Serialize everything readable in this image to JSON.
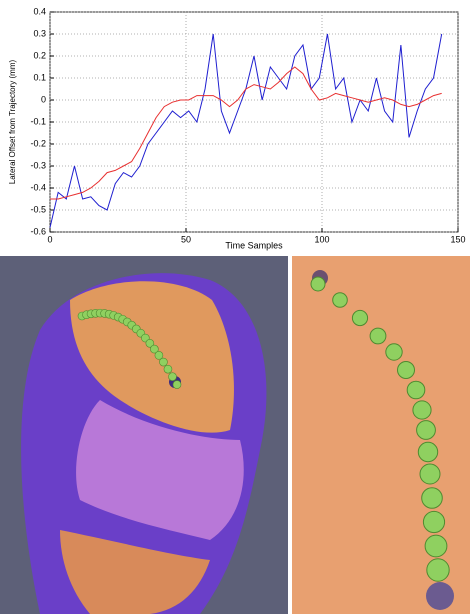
{
  "chart_data": {
    "type": "line",
    "x_label": "Time Samples",
    "y_label": "Lateral Offset from Trajectory (mm)",
    "x": [
      0,
      3,
      6,
      9,
      12,
      15,
      18,
      21,
      24,
      27,
      30,
      33,
      36,
      39,
      42,
      45,
      48,
      51,
      54,
      57,
      60,
      63,
      66,
      69,
      72,
      75,
      78,
      81,
      84,
      87,
      90,
      93,
      96,
      99,
      102,
      105,
      108,
      111,
      114,
      117,
      120,
      123,
      126,
      129,
      132,
      135,
      138,
      141,
      144
    ],
    "series": [
      {
        "color": "#1f1fd0",
        "values": [
          -0.58,
          -0.42,
          -0.45,
          -0.3,
          -0.45,
          -0.44,
          -0.48,
          -0.5,
          -0.38,
          -0.33,
          -0.35,
          -0.3,
          -0.2,
          -0.15,
          -0.1,
          -0.05,
          -0.08,
          -0.05,
          -0.1,
          0.05,
          0.3,
          -0.05,
          -0.15,
          -0.05,
          0.05,
          0.2,
          0.0,
          0.15,
          0.1,
          0.05,
          0.2,
          0.25,
          0.05,
          0.1,
          0.3,
          0.05,
          0.1,
          -0.1,
          0.0,
          -0.05,
          0.1,
          -0.05,
          -0.1,
          0.25,
          -0.17,
          -0.05,
          0.05,
          0.1,
          0.3
        ]
      },
      {
        "color": "#e83030",
        "values": [
          -0.45,
          -0.45,
          -0.44,
          -0.43,
          -0.42,
          -0.4,
          -0.37,
          -0.33,
          -0.32,
          -0.3,
          -0.28,
          -0.22,
          -0.15,
          -0.08,
          -0.03,
          -0.01,
          0.0,
          0.0,
          0.02,
          0.02,
          0.02,
          0.0,
          -0.03,
          0.0,
          0.05,
          0.07,
          0.06,
          0.05,
          0.08,
          0.12,
          0.15,
          0.12,
          0.05,
          0.0,
          0.01,
          0.03,
          0.02,
          0.01,
          0.0,
          -0.01,
          0.0,
          0.01,
          0.0,
          -0.02,
          -0.03,
          -0.02,
          0.0,
          0.02,
          0.03
        ]
      }
    ],
    "xlim": [
      0,
      150
    ],
    "xticks": [
      0,
      50,
      100,
      150
    ],
    "ylim": [
      -0.6,
      0.4
    ],
    "yticks": [
      -0.6,
      -0.5,
      -0.4,
      -0.3,
      -0.2,
      -0.1,
      0,
      0.1,
      0.2,
      0.3,
      0.4
    ],
    "grid": true
  }
}
